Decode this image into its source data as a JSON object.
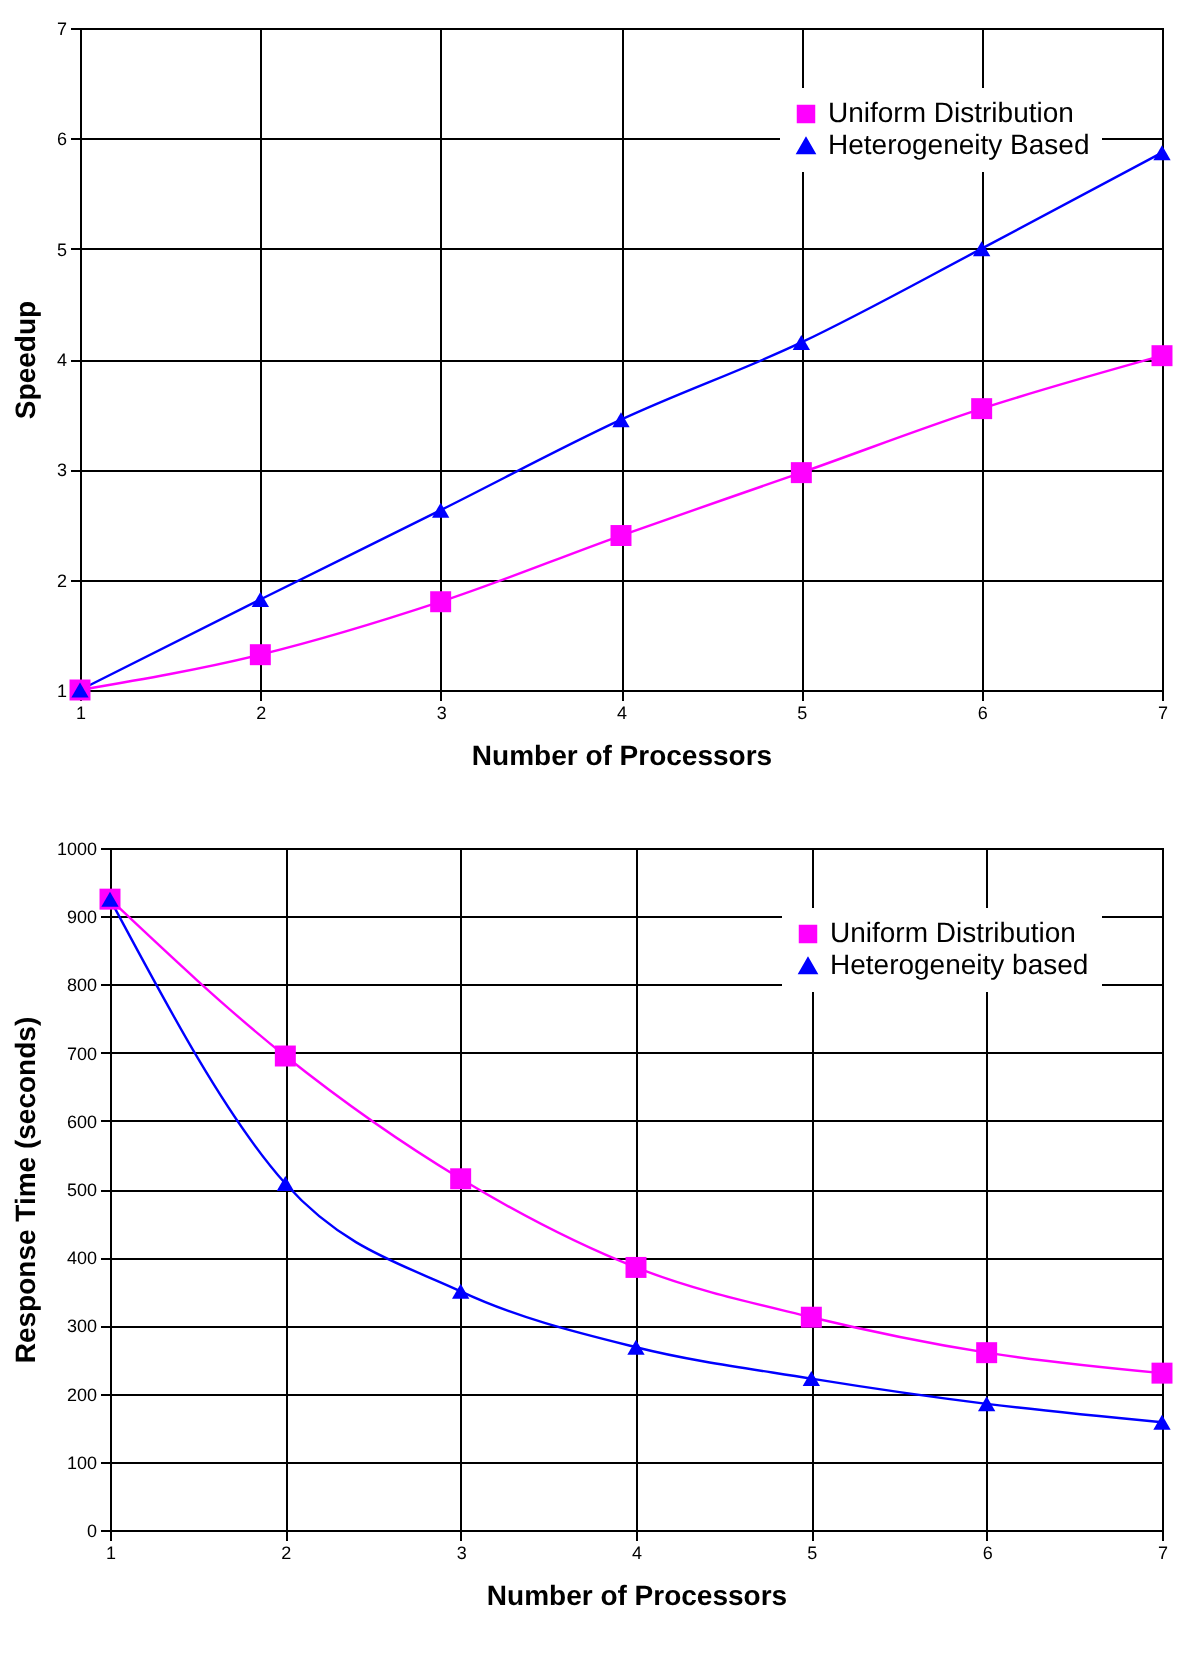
{
  "chart_data": [
    {
      "type": "line",
      "xlabel": "Number of Processors",
      "ylabel": "Speedup",
      "x": [
        1,
        2,
        3,
        4,
        5,
        6,
        7
      ],
      "xlim": [
        1,
        7
      ],
      "xticks": [
        1,
        2,
        3,
        4,
        5,
        6,
        7
      ],
      "ylim": [
        1,
        7
      ],
      "yticks": [
        1,
        2,
        3,
        4,
        5,
        6,
        7
      ],
      "grid": true,
      "legend": "top right",
      "series": [
        {
          "name": "Uniform Distribution",
          "color": "#ff00ff",
          "marker": "square",
          "values": [
            1,
            1.32,
            1.8,
            2.4,
            2.97,
            3.55,
            4.03
          ]
        },
        {
          "name": "Heterogeneity Based",
          "color": "#0000ff",
          "marker": "triangle",
          "values": [
            1,
            1.82,
            2.63,
            3.45,
            4.15,
            5.0,
            5.87
          ]
        }
      ]
    },
    {
      "type": "line",
      "xlabel": "Number of Processors",
      "ylabel": "Response Time (seconds)",
      "x": [
        1,
        2,
        3,
        4,
        5,
        6,
        7
      ],
      "xlim": [
        1,
        7
      ],
      "xticks": [
        1,
        2,
        3,
        4,
        5,
        6,
        7
      ],
      "ylim": [
        0,
        1000
      ],
      "yticks": [
        0,
        100,
        200,
        300,
        400,
        500,
        600,
        700,
        800,
        900,
        1000
      ],
      "grid": true,
      "legend": "top right",
      "series": [
        {
          "name": "Uniform Distribution",
          "color": "#ff00ff",
          "marker": "square",
          "values": [
            925,
            695,
            515,
            385,
            312,
            260,
            230
          ]
        },
        {
          "name": "Heterogeneity based",
          "color": "#0000ff",
          "marker": "triangle",
          "values": [
            925,
            508,
            350,
            268,
            222,
            185,
            158
          ]
        }
      ]
    }
  ]
}
